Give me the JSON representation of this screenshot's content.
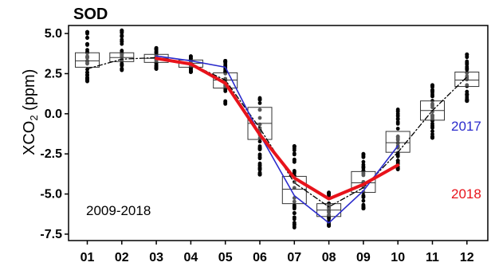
{
  "chart_data": {
    "type": "box",
    "title": "SOD",
    "ylabel_main": "XCO",
    "ylabel_sub": "2",
    "ylabel_unit": " (ppm)",
    "categories": [
      "01",
      "02",
      "03",
      "04",
      "05",
      "06",
      "07",
      "08",
      "09",
      "10",
      "11",
      "12"
    ],
    "yticks": [
      5.0,
      2.5,
      0.0,
      -2.5,
      -5.0,
      -7.5
    ],
    "ytick_labels": [
      "5.0",
      "2.5",
      "0.0",
      "-2.5",
      "-5.0",
      "-7.5"
    ],
    "ylim": [
      -7.9,
      5.5
    ],
    "boxes": [
      {
        "q1": 2.9,
        "median": 3.3,
        "q3": 3.8,
        "whisker_low": 2.0,
        "whisker_high": 5.1
      },
      {
        "q1": 3.25,
        "median": 3.5,
        "q3": 3.8,
        "whisker_low": 2.7,
        "whisker_high": 5.2
      },
      {
        "q1": 3.2,
        "median": 3.45,
        "q3": 3.7,
        "whisker_low": 2.8,
        "whisker_high": 4.1
      },
      {
        "q1": 2.9,
        "median": 3.15,
        "q3": 3.35,
        "whisker_low": 2.6,
        "whisker_high": 3.6
      },
      {
        "q1": 1.6,
        "median": 2.1,
        "q3": 2.55,
        "whisker_low": 0.6,
        "whisker_high": 3.3
      },
      {
        "q1": -1.6,
        "median": -0.6,
        "q3": 0.4,
        "whisker_low": -3.8,
        "whisker_high": 1.0
      },
      {
        "q1": -5.6,
        "median": -4.7,
        "q3": -3.9,
        "whisker_low": -7.1,
        "whisker_high": -2.0
      },
      {
        "q1": -6.4,
        "median": -6.0,
        "q3": -5.6,
        "whisker_low": -7.0,
        "whisker_high": -4.9
      },
      {
        "q1": -4.9,
        "median": -4.3,
        "q3": -3.6,
        "whisker_low": -5.9,
        "whisker_high": -2.5
      },
      {
        "q1": -2.4,
        "median": -1.8,
        "q3": -1.1,
        "whisker_low": -3.5,
        "whisker_high": 0.3
      },
      {
        "q1": -0.4,
        "median": 0.2,
        "q3": 0.8,
        "whisker_low": -1.5,
        "whisker_high": 1.8
      },
      {
        "q1": 1.7,
        "median": 2.1,
        "q3": 2.6,
        "whisker_low": 0.8,
        "whisker_high": 3.7
      }
    ],
    "series": [
      {
        "name": "2009-2018",
        "color": "#000000",
        "style": "dashdot",
        "values": [
          2.8,
          3.4,
          3.5,
          3.1,
          2.1,
          -0.9,
          -4.3,
          -5.8,
          -4.6,
          -2.4,
          0.2,
          2.3
        ]
      },
      {
        "name": "2017",
        "color": "#2b2bcc",
        "style": "solid",
        "values": [
          null,
          null,
          3.6,
          3.3,
          2.9,
          -1.3,
          -5.1,
          -6.8,
          -4.8,
          -2.0,
          null,
          null
        ]
      },
      {
        "name": "2018",
        "color": "#e8131b",
        "style": "solid-thick",
        "values": [
          null,
          null,
          3.45,
          3.1,
          1.9,
          -1.3,
          -4.0,
          -5.3,
          -4.4,
          -3.2,
          null,
          null
        ]
      }
    ],
    "labels": {
      "range": "2009-2018",
      "y2017": "2017",
      "y2018": "2018"
    },
    "grid": false,
    "points_color": "#000000"
  }
}
